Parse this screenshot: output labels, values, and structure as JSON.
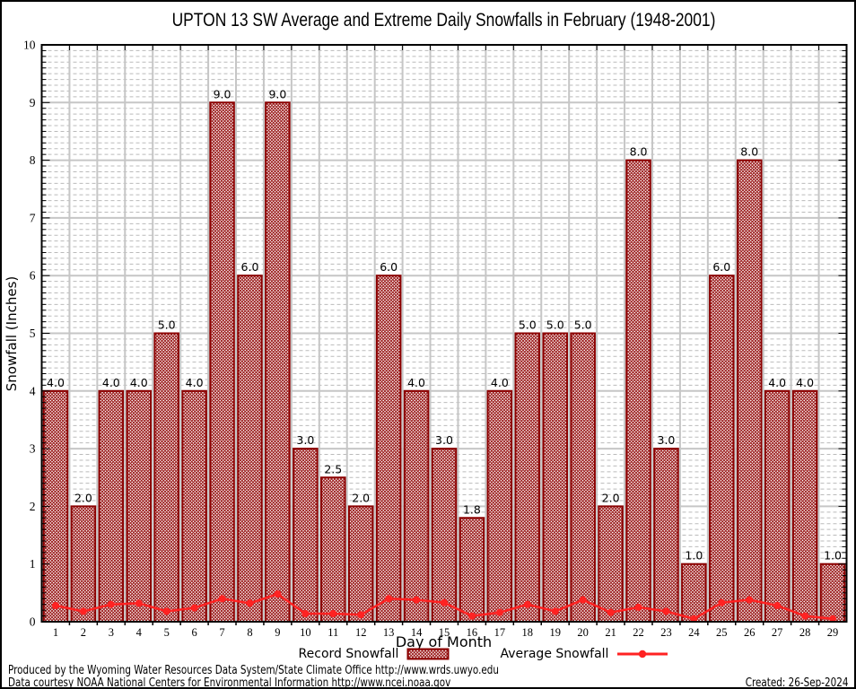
{
  "title": "UPTON 13 SW Average and Extreme Daily Snowfalls in February (1948-2001)",
  "axes": {
    "x_label": "Day of Month",
    "y_label": "Snowfall (Inches)",
    "y_ticks": [
      "0",
      "1",
      "2",
      "3",
      "4",
      "5",
      "6",
      "7",
      "8",
      "9",
      "10"
    ]
  },
  "legend": {
    "record_label": "Record Snowfall",
    "average_label": "Average Snowfall"
  },
  "footer": {
    "line1": "Produced by the Wyoming Water Resources Data System/State Climate Office http://www.wrds.uwyo.edu",
    "line2": "Data courtesy NOAA National Centers for Environmental Information http://www.ncei.noaa.gov",
    "created": "Created: 26-Sep-2024"
  },
  "colors": {
    "bar_hatch": "#9b1c1c",
    "bar_border": "#8b0000",
    "average_line": "#ff2222",
    "grid_major": "#c6c6c6",
    "grid_minor": "#bbbbbb",
    "axis": "#000000",
    "background": "#ffffff"
  },
  "chart_data": {
    "type": "bar",
    "title": "UPTON 13 SW Average and Extreme Daily Snowfalls in February (1948-2001)",
    "xlabel": "Day of Month",
    "ylabel": "Snowfall (Inches)",
    "ylim": [
      0,
      10
    ],
    "y_major_step": 1,
    "y_minor_step": 0.1,
    "grid": true,
    "legend_position": "bottom",
    "categories": [
      1,
      2,
      3,
      4,
      5,
      6,
      7,
      8,
      9,
      10,
      11,
      12,
      13,
      14,
      15,
      16,
      17,
      18,
      19,
      20,
      21,
      22,
      23,
      24,
      25,
      26,
      27,
      28,
      29
    ],
    "series": [
      {
        "name": "Record Snowfall",
        "type": "bar",
        "values": [
          4.0,
          2.0,
          4.0,
          4.0,
          5.0,
          4.0,
          9.0,
          6.0,
          9.0,
          3.0,
          2.5,
          2.0,
          6.0,
          4.0,
          3.0,
          1.8,
          4.0,
          5.0,
          5.0,
          5.0,
          2.0,
          8.0,
          3.0,
          1.0,
          6.0,
          8.0,
          4.0,
          4.0,
          1.0
        ],
        "value_labels": [
          "4.0",
          "2.0",
          "4.0",
          "4.0",
          "5.0",
          "4.0",
          "9.0",
          "6.0",
          "9.0",
          "3.0",
          "2.5",
          "2.0",
          "6.0",
          "4.0",
          "3.0",
          "1.8",
          "4.0",
          "5.0",
          "5.0",
          "5.0",
          "2.0",
          "8.0",
          "3.0",
          "1.0",
          "6.0",
          "8.0",
          "4.0",
          "4.0",
          "1.0"
        ]
      },
      {
        "name": "Average Snowfall",
        "type": "line",
        "values": [
          0.28,
          0.18,
          0.3,
          0.32,
          0.18,
          0.24,
          0.4,
          0.32,
          0.48,
          0.14,
          0.14,
          0.12,
          0.4,
          0.38,
          0.33,
          0.1,
          0.16,
          0.3,
          0.18,
          0.38,
          0.16,
          0.25,
          0.18,
          0.05,
          0.33,
          0.38,
          0.28,
          0.1,
          0.05
        ]
      }
    ]
  }
}
